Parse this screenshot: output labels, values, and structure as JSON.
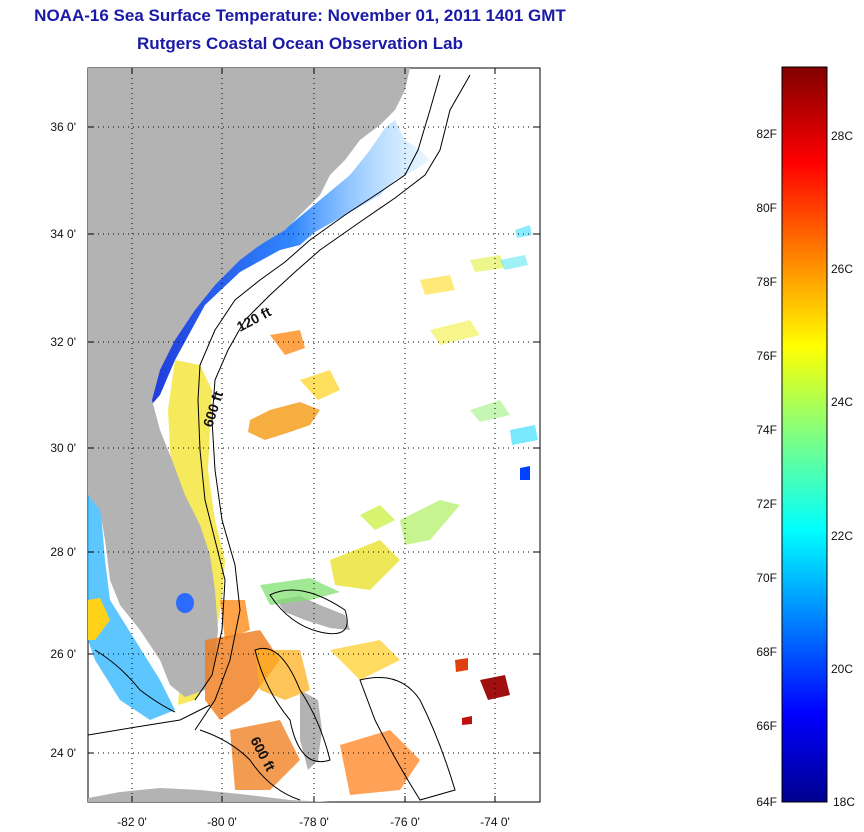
{
  "header": {
    "title": "NOAA-16 Sea Surface Temperature:  November 01, 2011 1401 GMT",
    "subtitle": "Rutgers Coastal Ocean Observation Lab"
  },
  "map": {
    "region": "US Southeast coast, Florida, Bahamas",
    "lat_labels": [
      "36 0'",
      "34 0'",
      "32 0'",
      "30 0'",
      "28 0'",
      "26 0'",
      "24 0'"
    ],
    "lon_labels": [
      "-82 0'",
      "-80 0'",
      "-78 0'",
      "-76 0'",
      "-74 0'"
    ],
    "isobath_labels": [
      "120 ft",
      "600 ft",
      "600 ft"
    ],
    "land_color": "#b3b3b3",
    "grid": "dotted"
  },
  "colorbar": {
    "fahrenheit": [
      "82F",
      "80F",
      "78F",
      "76F",
      "74F",
      "72F",
      "70F",
      "68F",
      "66F",
      "64F"
    ],
    "celsius": [
      "28C",
      "26C",
      "24C",
      "22C",
      "20C",
      "18C"
    ],
    "colormap": "jet"
  }
}
